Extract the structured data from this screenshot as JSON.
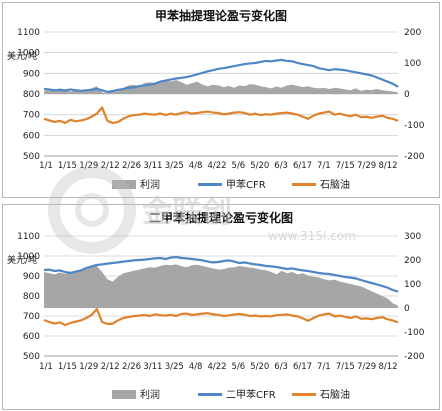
{
  "watermark": {
    "brand": "金联创",
    "url": "www.315i.com",
    "icon": "jlc-logo-icon"
  },
  "colors": {
    "profit": "#a6a6a6",
    "cfr": "#4f86c6",
    "naphtha": "#e0822c"
  },
  "chart_data": [
    {
      "type": "area",
      "title": "甲苯抽提理论盈亏变化图",
      "unit_left": "美元/吨",
      "left_axis": {
        "min": 500,
        "max": 1100,
        "ticks": [
          "1100",
          "1000",
          "900",
          "800",
          "700",
          "600",
          "500"
        ]
      },
      "right_axis": {
        "min": -200,
        "max": 200,
        "ticks": [
          "200",
          "100",
          "0",
          "-100",
          "-200"
        ]
      },
      "x_ticks": [
        "1/1",
        "1/15",
        "1/29",
        "2/12",
        "2/26",
        "3/11",
        "3/25",
        "4/8",
        "4/22",
        "5/6",
        "5/20",
        "6/3",
        "6/17",
        "7/1",
        "7/15",
        "7/29",
        "8/12"
      ],
      "legend": [
        "利润",
        "甲苯CFR",
        "石脑油"
      ],
      "series": [
        {
          "name": "利润",
          "axis": "right",
          "values": [
            10,
            15,
            12,
            18,
            14,
            8,
            12,
            6,
            10,
            18,
            25,
            5,
            2,
            12,
            8,
            20,
            28,
            30,
            25,
            35,
            38,
            35,
            40,
            45,
            40,
            45,
            38,
            30,
            35,
            40,
            30,
            25,
            30,
            28,
            22,
            26,
            20,
            28,
            25,
            32,
            30,
            25,
            22,
            18,
            24,
            20,
            28,
            30,
            26,
            22,
            25,
            20,
            18,
            20,
            16,
            20,
            18,
            15,
            12,
            18,
            10,
            14,
            12,
            16,
            12,
            10,
            8,
            5
          ]
        },
        {
          "name": "甲苯CFR",
          "axis": "left",
          "values": [
            825,
            822,
            818,
            820,
            817,
            822,
            818,
            815,
            818,
            820,
            825,
            818,
            810,
            815,
            820,
            824,
            830,
            832,
            838,
            842,
            845,
            850,
            860,
            865,
            870,
            875,
            878,
            882,
            888,
            895,
            902,
            910,
            915,
            922,
            925,
            930,
            935,
            940,
            945,
            948,
            950,
            955,
            960,
            958,
            962,
            965,
            960,
            958,
            950,
            945,
            940,
            935,
            925,
            920,
            915,
            920,
            918,
            915,
            910,
            905,
            900,
            895,
            890,
            880,
            870,
            860,
            850,
            835
          ]
        },
        {
          "name": "石脑油",
          "axis": "left",
          "values": [
            680,
            672,
            665,
            670,
            660,
            675,
            668,
            672,
            678,
            690,
            705,
            735,
            670,
            660,
            665,
            680,
            692,
            698,
            700,
            705,
            702,
            700,
            706,
            698,
            705,
            700,
            708,
            712,
            705,
            708,
            712,
            715,
            710,
            708,
            702,
            705,
            710,
            712,
            708,
            700,
            705,
            698,
            702,
            700,
            705,
            708,
            710,
            705,
            700,
            690,
            680,
            695,
            705,
            710,
            715,
            700,
            705,
            698,
            692,
            700,
            688,
            690,
            685,
            690,
            695,
            685,
            680,
            670
          ]
        }
      ]
    },
    {
      "type": "area",
      "title": "二甲苯抽提理论盈亏变化图",
      "unit_left": "美元/吨",
      "left_axis": {
        "min": 500,
        "max": 1100,
        "ticks": [
          "1100",
          "1000",
          "900",
          "800",
          "700",
          "600",
          "500"
        ]
      },
      "right_axis": {
        "min": -200,
        "max": 300,
        "ticks": [
          "300",
          "200",
          "100",
          "0",
          "-100",
          "-200"
        ]
      },
      "x_ticks": [
        "1/1",
        "1/15",
        "1/29",
        "2/12",
        "2/26",
        "3/11",
        "3/25",
        "4/8",
        "4/22",
        "5/6",
        "5/20",
        "6/3",
        "6/17",
        "7/1",
        "7/15",
        "7/29",
        "8/12"
      ],
      "legend": [
        "利润",
        "二甲苯CFR",
        "石脑油"
      ],
      "series": [
        {
          "name": "利润",
          "axis": "right",
          "values": [
            150,
            145,
            140,
            148,
            142,
            150,
            155,
            160,
            165,
            170,
            175,
            150,
            120,
            110,
            130,
            145,
            150,
            155,
            160,
            165,
            170,
            168,
            175,
            180,
            178,
            182,
            175,
            170,
            178,
            180,
            175,
            170,
            165,
            160,
            162,
            168,
            170,
            175,
            172,
            168,
            165,
            160,
            158,
            150,
            140,
            155,
            145,
            150,
            140,
            145,
            135,
            130,
            128,
            120,
            115,
            118,
            110,
            105,
            100,
            95,
            90,
            80,
            70,
            60,
            50,
            40,
            20,
            10
          ]
        },
        {
          "name": "二甲苯CFR",
          "axis": "left",
          "values": [
            930,
            932,
            925,
            928,
            920,
            915,
            922,
            928,
            940,
            948,
            955,
            958,
            962,
            965,
            968,
            972,
            975,
            978,
            980,
            982,
            985,
            988,
            990,
            985,
            992,
            995,
            990,
            988,
            985,
            982,
            978,
            972,
            968,
            970,
            975,
            978,
            972,
            965,
            968,
            962,
            958,
            955,
            950,
            948,
            945,
            940,
            935,
            938,
            932,
            928,
            925,
            920,
            915,
            912,
            910,
            905,
            900,
            895,
            892,
            888,
            880,
            872,
            865,
            858,
            850,
            842,
            830,
            822
          ]
        },
        {
          "name": "石脑油",
          "axis": "left",
          "values": [
            680,
            670,
            662,
            668,
            655,
            665,
            672,
            678,
            690,
            705,
            735,
            670,
            660,
            662,
            678,
            690,
            695,
            700,
            702,
            705,
            700,
            708,
            704,
            702,
            706,
            700,
            710,
            712,
            705,
            708,
            712,
            714,
            708,
            706,
            700,
            703,
            708,
            710,
            706,
            700,
            702,
            698,
            700,
            698,
            704,
            706,
            708,
            702,
            698,
            688,
            676,
            690,
            702,
            708,
            712,
            698,
            702,
            696,
            690,
            698,
            686,
            688,
            684,
            690,
            694,
            684,
            678,
            668
          ]
        }
      ]
    }
  ]
}
